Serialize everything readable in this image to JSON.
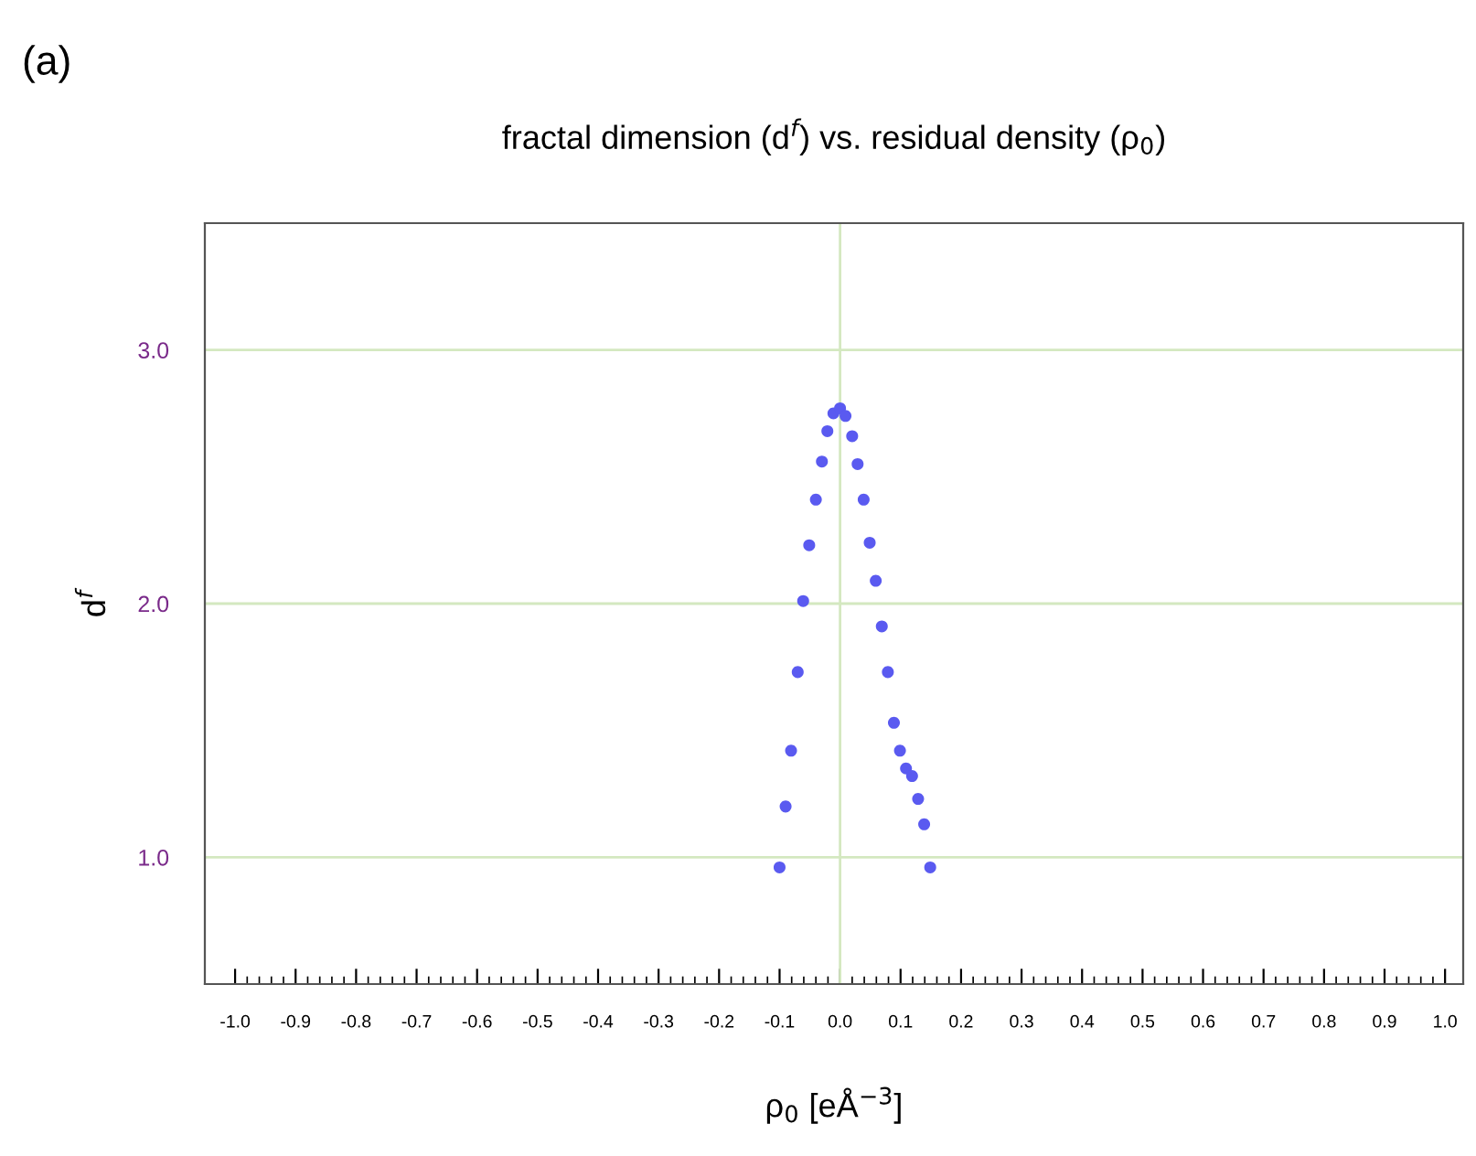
{
  "chart_data": {
    "type": "scatter",
    "title": "fractal dimension (d$^{f}$) vs. residual density (ρ$_{0}$)",
    "xlabel": "ρ$_{0}$ [eÅ$^{−3}$]",
    "ylabel": "d$^{f}$",
    "annotations": [
      "(a)"
    ],
    "xlim": [
      -1.05,
      1.03
    ],
    "xticks": [
      {
        "value": -1.0,
        "label": "-1.0"
      },
      {
        "value": -0.9,
        "label": "-0.9"
      },
      {
        "value": -0.8,
        "label": "-0.8"
      },
      {
        "value": -0.7,
        "label": "-0.7"
      },
      {
        "value": -0.6,
        "label": "-0.6"
      },
      {
        "value": -0.5,
        "label": "-0.5"
      },
      {
        "value": -0.4,
        "label": "-0.4"
      },
      {
        "value": -0.3,
        "label": "-0.3"
      },
      {
        "value": -0.2,
        "label": "-0.2"
      },
      {
        "value": -0.1,
        "label": "-0.1"
      },
      {
        "value": 0.0,
        "label": "0.0"
      },
      {
        "value": 0.1,
        "label": "0.1"
      },
      {
        "value": 0.2,
        "label": "0.2"
      },
      {
        "value": 0.3,
        "label": "0.3"
      },
      {
        "value": 0.4,
        "label": "0.4"
      },
      {
        "value": 0.5,
        "label": "0.5"
      },
      {
        "value": 0.6,
        "label": "0.6"
      },
      {
        "value": 0.7,
        "label": "0.7"
      },
      {
        "value": 0.8,
        "label": "0.8"
      },
      {
        "value": 0.9,
        "label": "0.9"
      },
      {
        "value": 1.0,
        "label": "1.0"
      }
    ],
    "ylim": [
      0.5,
      3.5
    ],
    "yticks": [
      {
        "value": 1.0,
        "label": "1.0"
      },
      {
        "value": 2.0,
        "label": "2.0"
      },
      {
        "value": 3.0,
        "label": "3.0"
      }
    ],
    "grid": "y",
    "ref_lines": [
      {
        "axis": "x",
        "value": 0,
        "color": "#d4e8c0"
      }
    ],
    "marker": "circle",
    "series": [
      {
        "color": "#5a5af0",
        "x": [
          -0.1,
          -0.09,
          -0.081,
          -0.07,
          -0.061,
          -0.051,
          -0.04,
          -0.03,
          -0.021,
          -0.011,
          0.0,
          0.009,
          0.02,
          0.029,
          0.039,
          0.049,
          0.059,
          0.069,
          0.079,
          0.089,
          0.099,
          0.109,
          0.119,
          0.129,
          0.139,
          0.149
        ],
        "values": [
          0.96,
          1.2,
          1.42,
          1.73,
          2.01,
          2.23,
          2.41,
          2.56,
          2.68,
          2.75,
          2.77,
          2.74,
          2.66,
          2.55,
          2.41,
          2.24,
          2.09,
          1.91,
          1.73,
          1.53,
          1.42,
          1.35,
          1.32,
          1.23,
          1.13,
          0.96
        ]
      }
    ]
  }
}
